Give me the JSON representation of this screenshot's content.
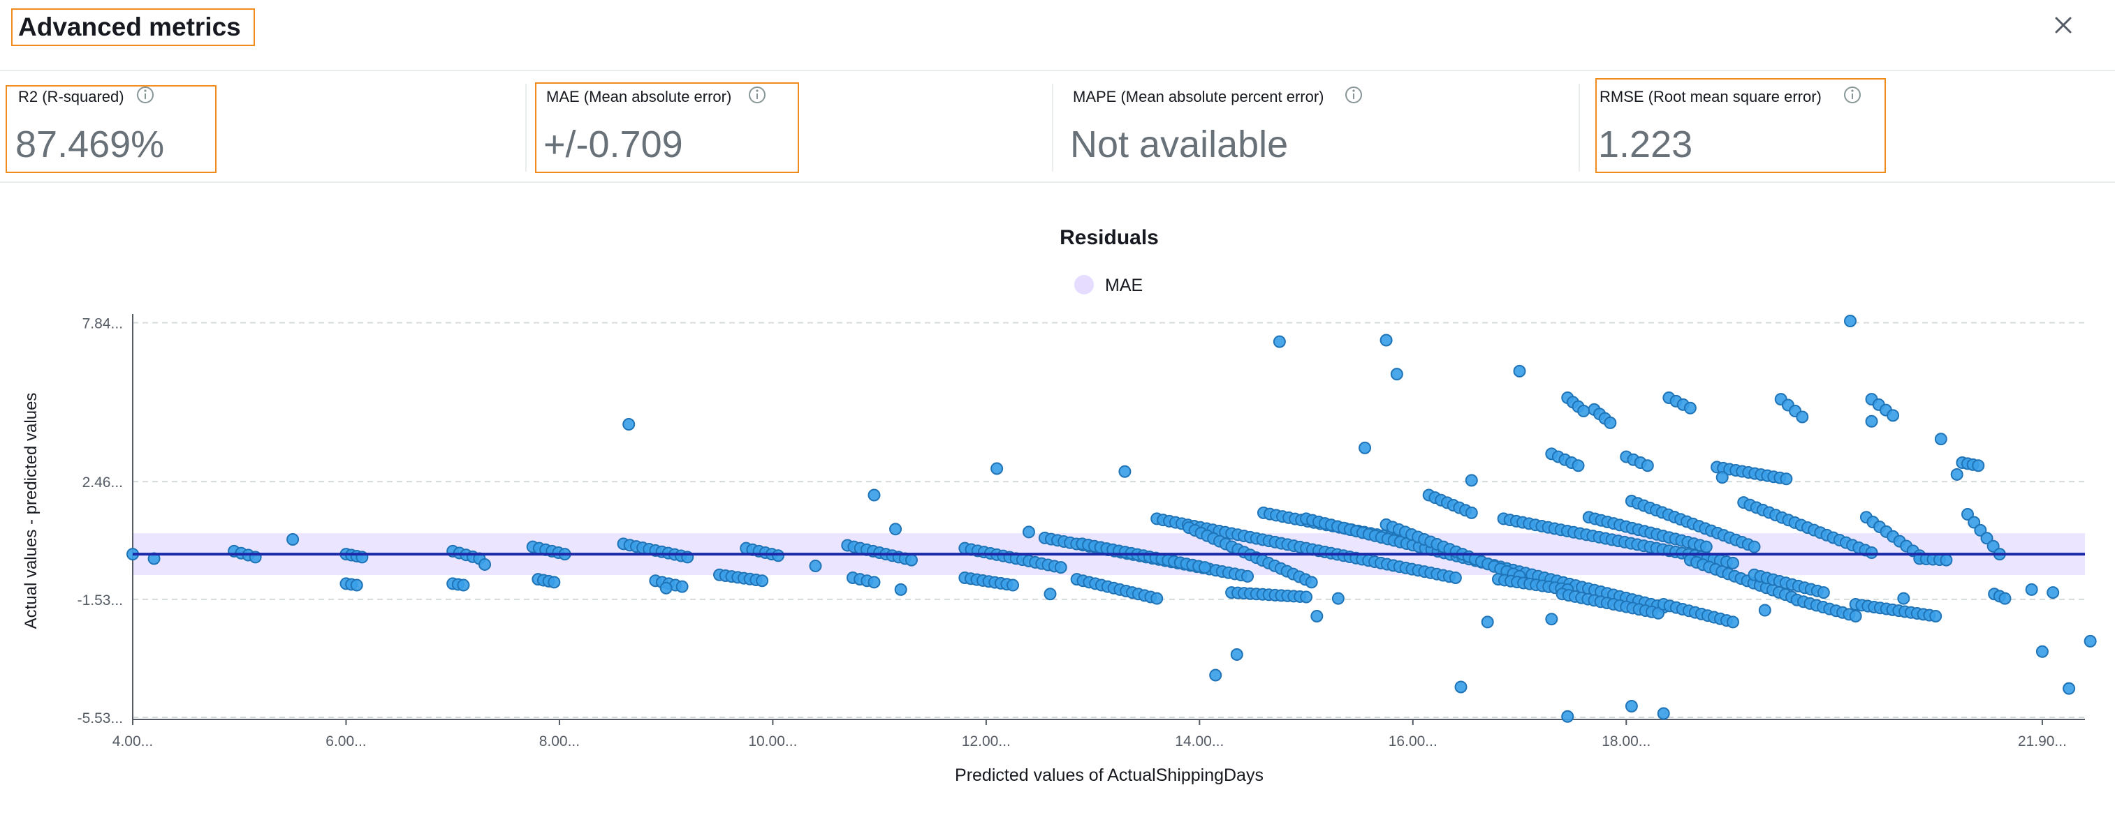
{
  "header": {
    "title": "Advanced metrics",
    "close_icon": "close-icon"
  },
  "metrics": [
    {
      "label": "R2 (R-squared)",
      "value": "87.469%",
      "highlighted": true
    },
    {
      "label": "MAE (Mean absolute error)",
      "value": "+/-0.709",
      "highlighted": true
    },
    {
      "label": "MAPE (Mean absolute percent error)",
      "value": "Not available",
      "highlighted": false
    },
    {
      "label": "RMSE (Root mean square error)",
      "value": "1.223",
      "highlighted": true
    }
  ],
  "colors": {
    "accent_border": "#f08c1b",
    "point_fill": "#3aa0e8",
    "point_stroke": "#1f73b7",
    "zero_line": "#1a2aa8",
    "mae_band": "#e6dcff"
  },
  "chart_data": {
    "type": "scatter",
    "title": "Residuals",
    "legend": [
      {
        "name": "MAE",
        "color": "#e6dcff"
      }
    ],
    "legend_position": "top-center",
    "xlabel": "Predicted values of ActualShippingDays",
    "ylabel": "Actual values - predicted values",
    "xlim": [
      4.0,
      22.3
    ],
    "ylim": [
      -5.6,
      7.9
    ],
    "x_ticks": [
      {
        "value": 4.0,
        "label": "4.00..."
      },
      {
        "value": 6.0,
        "label": "6.00..."
      },
      {
        "value": 8.0,
        "label": "8.00..."
      },
      {
        "value": 10.0,
        "label": "10.00..."
      },
      {
        "value": 12.0,
        "label": "12.00..."
      },
      {
        "value": 14.0,
        "label": "14.00..."
      },
      {
        "value": 16.0,
        "label": "16.00..."
      },
      {
        "value": 18.0,
        "label": "18.00..."
      },
      {
        "value": 21.9,
        "label": "21.90..."
      }
    ],
    "y_ticks": [
      {
        "value": 7.84,
        "label": "7.84..."
      },
      {
        "value": 2.46,
        "label": "2.46..."
      },
      {
        "value": -1.53,
        "label": "-1.53..."
      },
      {
        "value": -5.53,
        "label": "-5.53..."
      }
    ],
    "grid": "horizontal dashed",
    "mae_band": [
      -0.709,
      0.709
    ],
    "zero_line": 0,
    "outliers": [
      [
        4.0,
        0.0
      ],
      [
        4.2,
        -0.15
      ],
      [
        5.5,
        0.5
      ],
      [
        8.65,
        4.4
      ],
      [
        10.95,
        2.0
      ],
      [
        11.15,
        0.85
      ],
      [
        12.1,
        2.9
      ],
      [
        12.6,
        -1.35
      ],
      [
        14.15,
        -4.1
      ],
      [
        14.35,
        -3.4
      ],
      [
        14.75,
        7.2
      ],
      [
        15.1,
        -2.1
      ],
      [
        15.55,
        3.6
      ],
      [
        15.75,
        7.25
      ],
      [
        15.85,
        6.1
      ],
      [
        16.45,
        -4.5
      ],
      [
        16.55,
        2.5
      ],
      [
        17.0,
        6.2
      ],
      [
        17.45,
        -5.5
      ],
      [
        18.05,
        -5.15
      ],
      [
        18.35,
        -5.4
      ],
      [
        20.1,
        7.9
      ],
      [
        20.3,
        4.5
      ],
      [
        20.95,
        3.9
      ],
      [
        21.8,
        -1.2
      ],
      [
        21.9,
        -3.3
      ],
      [
        22.0,
        -1.3
      ],
      [
        22.15,
        -4.55
      ],
      [
        22.35,
        -2.95
      ],
      [
        21.1,
        2.7
      ],
      [
        16.7,
        -2.3
      ],
      [
        15.3,
        -1.5
      ],
      [
        17.3,
        -2.2
      ],
      [
        19.3,
        -1.9
      ],
      [
        20.6,
        -1.5
      ],
      [
        18.9,
        2.6
      ],
      [
        13.3,
        2.8
      ],
      [
        12.4,
        0.75
      ],
      [
        9.0,
        -1.15
      ],
      [
        11.2,
        -1.2
      ],
      [
        7.3,
        -0.35
      ],
      [
        10.4,
        -0.4
      ]
    ],
    "diagonal_bands": [
      {
        "x": [
          4.95,
          5.15
        ],
        "y": [
          0.1,
          -0.1
        ]
      },
      {
        "x": [
          6.0,
          6.15
        ],
        "y": [
          0.0,
          -0.1
        ]
      },
      {
        "x": [
          6.0,
          6.1
        ],
        "y": [
          -1.0,
          -1.05
        ]
      },
      {
        "x": [
          7.0,
          7.25
        ],
        "y": [
          0.1,
          -0.15
        ]
      },
      {
        "x": [
          7.0,
          7.1
        ],
        "y": [
          -1.0,
          -1.05
        ]
      },
      {
        "x": [
          7.75,
          8.05
        ],
        "y": [
          0.25,
          0.0
        ]
      },
      {
        "x": [
          7.8,
          7.95
        ],
        "y": [
          -0.85,
          -0.95
        ]
      },
      {
        "x": [
          8.6,
          9.2
        ],
        "y": [
          0.35,
          -0.1
        ]
      },
      {
        "x": [
          8.9,
          9.15
        ],
        "y": [
          -0.9,
          -1.1
        ]
      },
      {
        "x": [
          9.75,
          10.05
        ],
        "y": [
          0.2,
          -0.05
        ]
      },
      {
        "x": [
          9.5,
          9.9
        ],
        "y": [
          -0.7,
          -0.9
        ]
      },
      {
        "x": [
          10.7,
          11.3
        ],
        "y": [
          0.3,
          -0.2
        ]
      },
      {
        "x": [
          10.75,
          10.95
        ],
        "y": [
          -0.8,
          -0.95
        ]
      },
      {
        "x": [
          11.8,
          12.7
        ],
        "y": [
          0.2,
          -0.45
        ]
      },
      {
        "x": [
          11.8,
          12.25
        ],
        "y": [
          -0.8,
          -1.05
        ]
      },
      {
        "x": [
          12.55,
          14.45
        ],
        "y": [
          0.55,
          -0.75
        ]
      },
      {
        "x": [
          12.9,
          14.05
        ],
        "y": [
          0.35,
          -0.45
        ]
      },
      {
        "x": [
          12.85,
          13.6
        ],
        "y": [
          -0.85,
          -1.5
        ]
      },
      {
        "x": [
          13.6,
          16.4
        ],
        "y": [
          1.2,
          -0.8
        ]
      },
      {
        "x": [
          13.9,
          15.05
        ],
        "y": [
          0.9,
          -0.95
        ]
      },
      {
        "x": [
          14.3,
          15.0
        ],
        "y": [
          -1.3,
          -1.45
        ]
      },
      {
        "x": [
          14.6,
          15.9
        ],
        "y": [
          1.4,
          0.5
        ]
      },
      {
        "x": [
          15.0,
          18.35
        ],
        "y": [
          1.2,
          -1.8
        ]
      },
      {
        "x": [
          15.75,
          17.0
        ],
        "y": [
          1.0,
          -0.75
        ]
      },
      {
        "x": [
          16.15,
          16.55
        ],
        "y": [
          2.0,
          1.4
        ]
      },
      {
        "x": [
          16.85,
          19.0
        ],
        "y": [
          1.2,
          -0.3
        ]
      },
      {
        "x": [
          16.8,
          17.45
        ],
        "y": [
          -0.85,
          -1.2
        ]
      },
      {
        "x": [
          17.4,
          18.3
        ],
        "y": [
          -1.35,
          -2.0
        ]
      },
      {
        "x": [
          17.65,
          18.75
        ],
        "y": [
          1.25,
          0.25
        ]
      },
      {
        "x": [
          18.05,
          19.2
        ],
        "y": [
          1.8,
          0.25
        ]
      },
      {
        "x": [
          18.6,
          19.55
        ],
        "y": [
          -0.2,
          -1.45
        ]
      },
      {
        "x": [
          18.35,
          19.0
        ],
        "y": [
          -1.7,
          -2.3
        ]
      },
      {
        "x": [
          19.1,
          20.3
        ],
        "y": [
          1.75,
          0.05
        ]
      },
      {
        "x": [
          19.2,
          19.85
        ],
        "y": [
          -0.7,
          -1.3
        ]
      },
      {
        "x": [
          19.6,
          20.15
        ],
        "y": [
          -1.55,
          -2.1
        ]
      },
      {
        "x": [
          20.25,
          20.75
        ],
        "y": [
          1.25,
          -0.05
        ]
      },
      {
        "x": [
          20.15,
          20.9
        ],
        "y": [
          -1.7,
          -2.1
        ]
      },
      {
        "x": [
          18.85,
          19.5
        ],
        "y": [
          2.95,
          2.55
        ]
      },
      {
        "x": [
          19.45,
          19.65
        ],
        "y": [
          5.25,
          4.65
        ]
      },
      {
        "x": [
          20.3,
          20.5
        ],
        "y": [
          5.25,
          4.7
        ]
      },
      {
        "x": [
          17.7,
          17.85
        ],
        "y": [
          4.9,
          4.45
        ]
      },
      {
        "x": [
          17.45,
          17.6
        ],
        "y": [
          5.3,
          4.85
        ]
      },
      {
        "x": [
          17.3,
          17.55
        ],
        "y": [
          3.4,
          3.0
        ]
      },
      {
        "x": [
          18.4,
          18.6
        ],
        "y": [
          5.3,
          4.95
        ]
      },
      {
        "x": [
          18.0,
          18.2
        ],
        "y": [
          3.3,
          3.0
        ]
      },
      {
        "x": [
          21.2,
          21.5
        ],
        "y": [
          1.35,
          0.0
        ]
      },
      {
        "x": [
          21.45,
          21.55
        ],
        "y": [
          -1.35,
          -1.5
        ]
      },
      {
        "x": [
          21.15,
          21.3
        ],
        "y": [
          3.1,
          3.0
        ]
      },
      {
        "x": [
          20.75,
          21.0
        ],
        "y": [
          -0.15,
          -0.2
        ]
      }
    ]
  }
}
